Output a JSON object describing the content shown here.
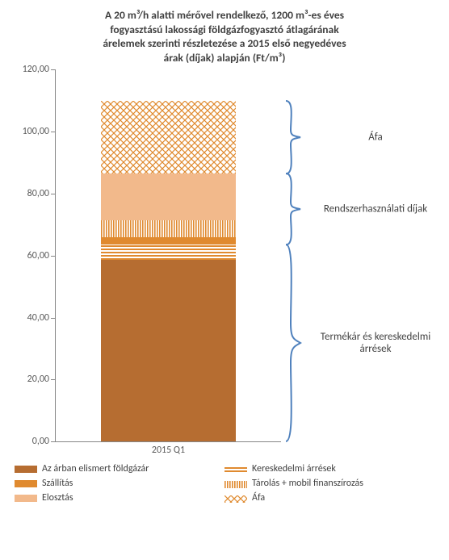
{
  "title_lines": [
    "A 20 m³/h alatti mérővel rendelkező, 1200 m³-es éves",
    "fogyasztású lakossági földgázfogyasztó átlagárának",
    "árelemek szerinti részletezése a 2015 első negyedéves",
    "árak (díjak) alapján (Ft/m³)"
  ],
  "category": "2015 Q1",
  "y": {
    "min": 0,
    "max": 120,
    "step": 20,
    "decimals": 2
  },
  "colors": {
    "axis": "#868686",
    "text": "#404040",
    "brace": "#4f81bd"
  },
  "segments": [
    {
      "key": "foldgazar",
      "label": "Az árban elismert földgázár",
      "value": 58.5,
      "fill": "#b66d31",
      "pattern": "solid"
    },
    {
      "key": "kereskedelmi",
      "label": "Kereskedelmi árrések",
      "value": 5.0,
      "fill": "#e08a2f",
      "pattern": "hstripe"
    },
    {
      "key": "szallitas",
      "label": "Szállítás",
      "value": 2.5,
      "fill": "#e08a2f",
      "pattern": "solid"
    },
    {
      "key": "tarolas",
      "label": "Tárolás + mobil finanszírozás",
      "value": 5.5,
      "fill": "#e08a2f",
      "pattern": "vstripe"
    },
    {
      "key": "elosztas",
      "label": "Elosztás",
      "value": 15.0,
      "fill": "#f2b98b",
      "pattern": "solid"
    },
    {
      "key": "afa",
      "label": "Áfa",
      "value": 23.5,
      "fill": "#e08a2f",
      "pattern": "cross"
    }
  ],
  "groups": [
    {
      "label": "Termékár és kereskedelmi árrések",
      "from": 0,
      "to": 2
    },
    {
      "label": "Rendszerhasználati díjak",
      "from": 2,
      "to": 5
    },
    {
      "label": "Áfa",
      "from": 5,
      "to": 6
    }
  ]
}
